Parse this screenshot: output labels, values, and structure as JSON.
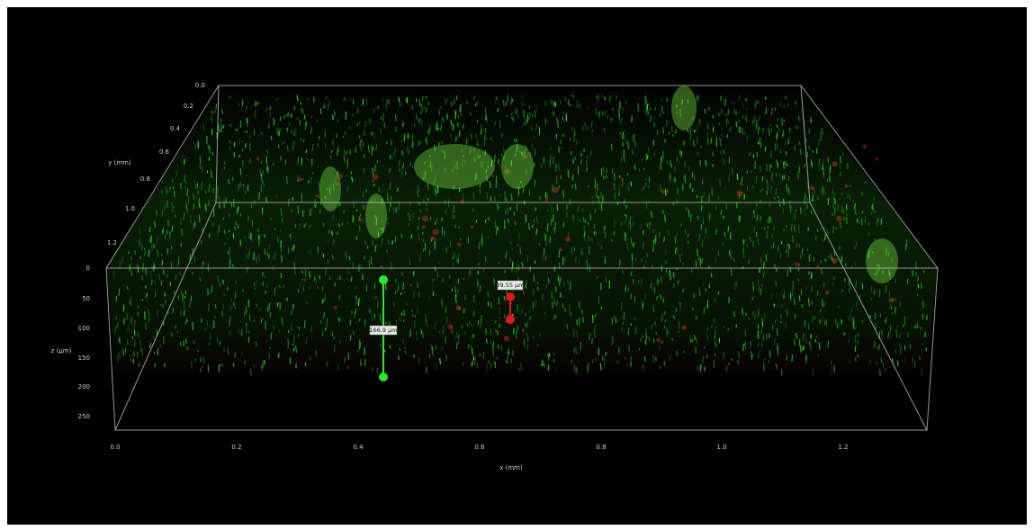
{
  "axes": {
    "y": {
      "title": "y (mm)",
      "ticks": [
        "0.0",
        "0.2",
        "0.4",
        "0.6",
        "0.8",
        "1.0",
        "1.2"
      ]
    },
    "z": {
      "title": "z (µm)",
      "ticks": [
        "0",
        "50",
        "100",
        "150",
        "200",
        "250"
      ]
    },
    "x": {
      "title": "x (mm)",
      "ticks": [
        "0.0",
        "0.2",
        "0.4",
        "0.6",
        "0.8",
        "1.0",
        "1.2"
      ]
    }
  },
  "measurements": [
    {
      "label": "166.9 µm",
      "color": "#2ee62e"
    },
    {
      "label": "39.55 µm",
      "color": "#e01818"
    }
  ]
}
